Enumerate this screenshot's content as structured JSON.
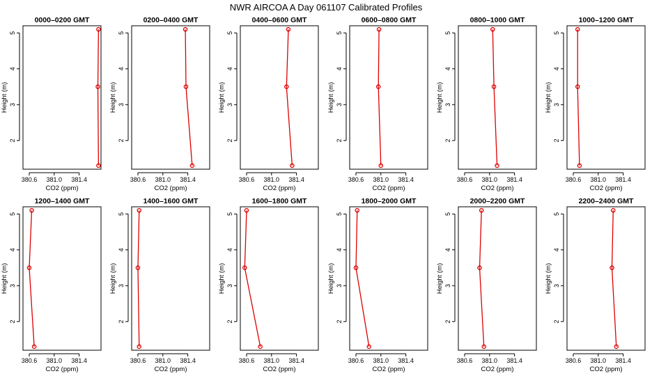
{
  "title": "NWR AIRCOA A  Day 061107  Calibrated Profiles",
  "series_color": "#dd0000",
  "chart_data": {
    "type": "line",
    "xlabel": "CO2 (ppm)",
    "ylabel": "Height (m)",
    "xlim": [
      380.5,
      381.75
    ],
    "ylim": [
      1.2,
      5.2
    ],
    "xticks": [
      380.6,
      381.0,
      381.4
    ],
    "xtick_labels": [
      "380.6",
      "381.0",
      "381.4"
    ],
    "yticks": [
      2,
      3,
      4,
      5
    ],
    "ytick_labels": [
      "2",
      "3",
      "4",
      "5"
    ],
    "panels": [
      {
        "title": "0000–0200 GMT",
        "points": [
          [
            381.71,
            5.1
          ],
          [
            381.7,
            3.5
          ],
          [
            381.71,
            1.3
          ]
        ]
      },
      {
        "title": "0200–0400 GMT",
        "points": [
          [
            381.36,
            5.1
          ],
          [
            381.37,
            3.5
          ],
          [
            381.47,
            1.3
          ]
        ]
      },
      {
        "title": "0400–0600 GMT",
        "points": [
          [
            381.27,
            5.1
          ],
          [
            381.24,
            3.5
          ],
          [
            381.33,
            1.3
          ]
        ]
      },
      {
        "title": "0600–0800 GMT",
        "points": [
          [
            380.97,
            5.1
          ],
          [
            380.96,
            3.5
          ],
          [
            381.0,
            1.3
          ]
        ]
      },
      {
        "title": "0800–1000 GMT",
        "points": [
          [
            381.05,
            5.1
          ],
          [
            381.07,
            3.5
          ],
          [
            381.12,
            1.3
          ]
        ]
      },
      {
        "title": "1000–1200 GMT",
        "points": [
          [
            380.67,
            5.1
          ],
          [
            380.67,
            3.5
          ],
          [
            380.7,
            1.3
          ]
        ]
      },
      {
        "title": "1200–1400 GMT",
        "points": [
          [
            380.64,
            5.1
          ],
          [
            380.6,
            3.5
          ],
          [
            380.68,
            1.3
          ]
        ]
      },
      {
        "title": "1400–1600 GMT",
        "points": [
          [
            380.62,
            5.1
          ],
          [
            380.6,
            3.5
          ],
          [
            380.62,
            1.3
          ]
        ]
      },
      {
        "title": "1600–1800 GMT",
        "points": [
          [
            380.6,
            5.1
          ],
          [
            380.57,
            3.5
          ],
          [
            380.82,
            1.3
          ]
        ]
      },
      {
        "title": "1800–2000 GMT",
        "points": [
          [
            380.62,
            5.1
          ],
          [
            380.6,
            3.5
          ],
          [
            380.81,
            1.3
          ]
        ]
      },
      {
        "title": "2000–2200 GMT",
        "points": [
          [
            380.87,
            5.1
          ],
          [
            380.84,
            3.5
          ],
          [
            380.91,
            1.3
          ]
        ]
      },
      {
        "title": "2200–2400 GMT",
        "points": [
          [
            381.24,
            5.1
          ],
          [
            381.22,
            3.5
          ],
          [
            381.29,
            1.3
          ]
        ]
      }
    ]
  }
}
